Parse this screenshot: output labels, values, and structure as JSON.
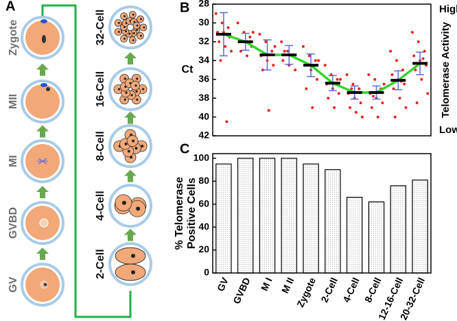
{
  "diagram": {
    "panel_label": "A",
    "stages_left": [
      "Zygote",
      "MII",
      "MI",
      "GVBD",
      "GV"
    ],
    "stages_right": [
      "32-Cell",
      "16-Cell",
      "8-Cell",
      "4-Cell",
      "2-Cell"
    ]
  },
  "chart_data": [
    {
      "type": "dotplot",
      "panel_label": "B",
      "ylabel": "Ct",
      "high_label": "High",
      "right_label": "Telomerase Activity",
      "low_label": "Low",
      "categories": [
        null,
        null,
        null,
        null,
        null,
        null,
        null,
        null,
        null,
        null
      ],
      "values": [
        31.2,
        32,
        33.4,
        33.4,
        34.5,
        36.4,
        37.4,
        37.4,
        36.1,
        34.3
      ],
      "errors": [
        2.3,
        0.9,
        1.6,
        1,
        1.2,
        0.8,
        0.7,
        0.7,
        1,
        1.2
      ],
      "points": [
        [
          29,
          30,
          30.5,
          31,
          31,
          31.5,
          32,
          32.5,
          33,
          34,
          40.5
        ],
        [
          30,
          31,
          31.5,
          32,
          32,
          32.5,
          33,
          33.5,
          31
        ],
        [
          31.2,
          32,
          33,
          33.5,
          34,
          34.5,
          35,
          39.3,
          32.5
        ],
        [
          32,
          33,
          33.5,
          34,
          34.5,
          35,
          33
        ],
        [
          32.5,
          33.5,
          34,
          34.5,
          35,
          36,
          37,
          39,
          34
        ],
        [
          34.5,
          35.5,
          36,
          36.5,
          37,
          37.5,
          38,
          39,
          36
        ],
        [
          35.5,
          36.5,
          37,
          37.5,
          38,
          38.5,
          39,
          39.5,
          40,
          37
        ],
        [
          35.5,
          36,
          37,
          37.5,
          38,
          38.5,
          39,
          40,
          36.5,
          37.8
        ],
        [
          33,
          34,
          35,
          35.5,
          36,
          36.5,
          37,
          38,
          39,
          40,
          36.2
        ],
        [
          31,
          32,
          33,
          33.5,
          34,
          34.5,
          35,
          36,
          37.5,
          38.5,
          33.8
        ]
      ],
      "point_color": "#e8211e",
      "error_color": "#5a6ad6",
      "mean_color": "#000000",
      "trend_color": "#35d42a",
      "ylim": [
        42,
        28
      ],
      "yticks": [
        28,
        30,
        32,
        34,
        36,
        38,
        40,
        42
      ]
    },
    {
      "type": "bar",
      "panel_label": "C",
      "ylabel": [
        "% Telomerase",
        "Positive Cells"
      ],
      "categories": [
        "GV",
        "GVBD",
        "M I",
        "M II",
        "Zygote",
        "2-Cell",
        "4-Cell",
        "8-Cell",
        "12-16-Cell",
        "20-32-Cell"
      ],
      "values": [
        95,
        100,
        100,
        100,
        95,
        90,
        66,
        62,
        76,
        81
      ],
      "color": "#bdbdbd",
      "ylim": [
        0,
        104
      ],
      "yticks": [
        0,
        20,
        40,
        60,
        80,
        100
      ]
    }
  ]
}
